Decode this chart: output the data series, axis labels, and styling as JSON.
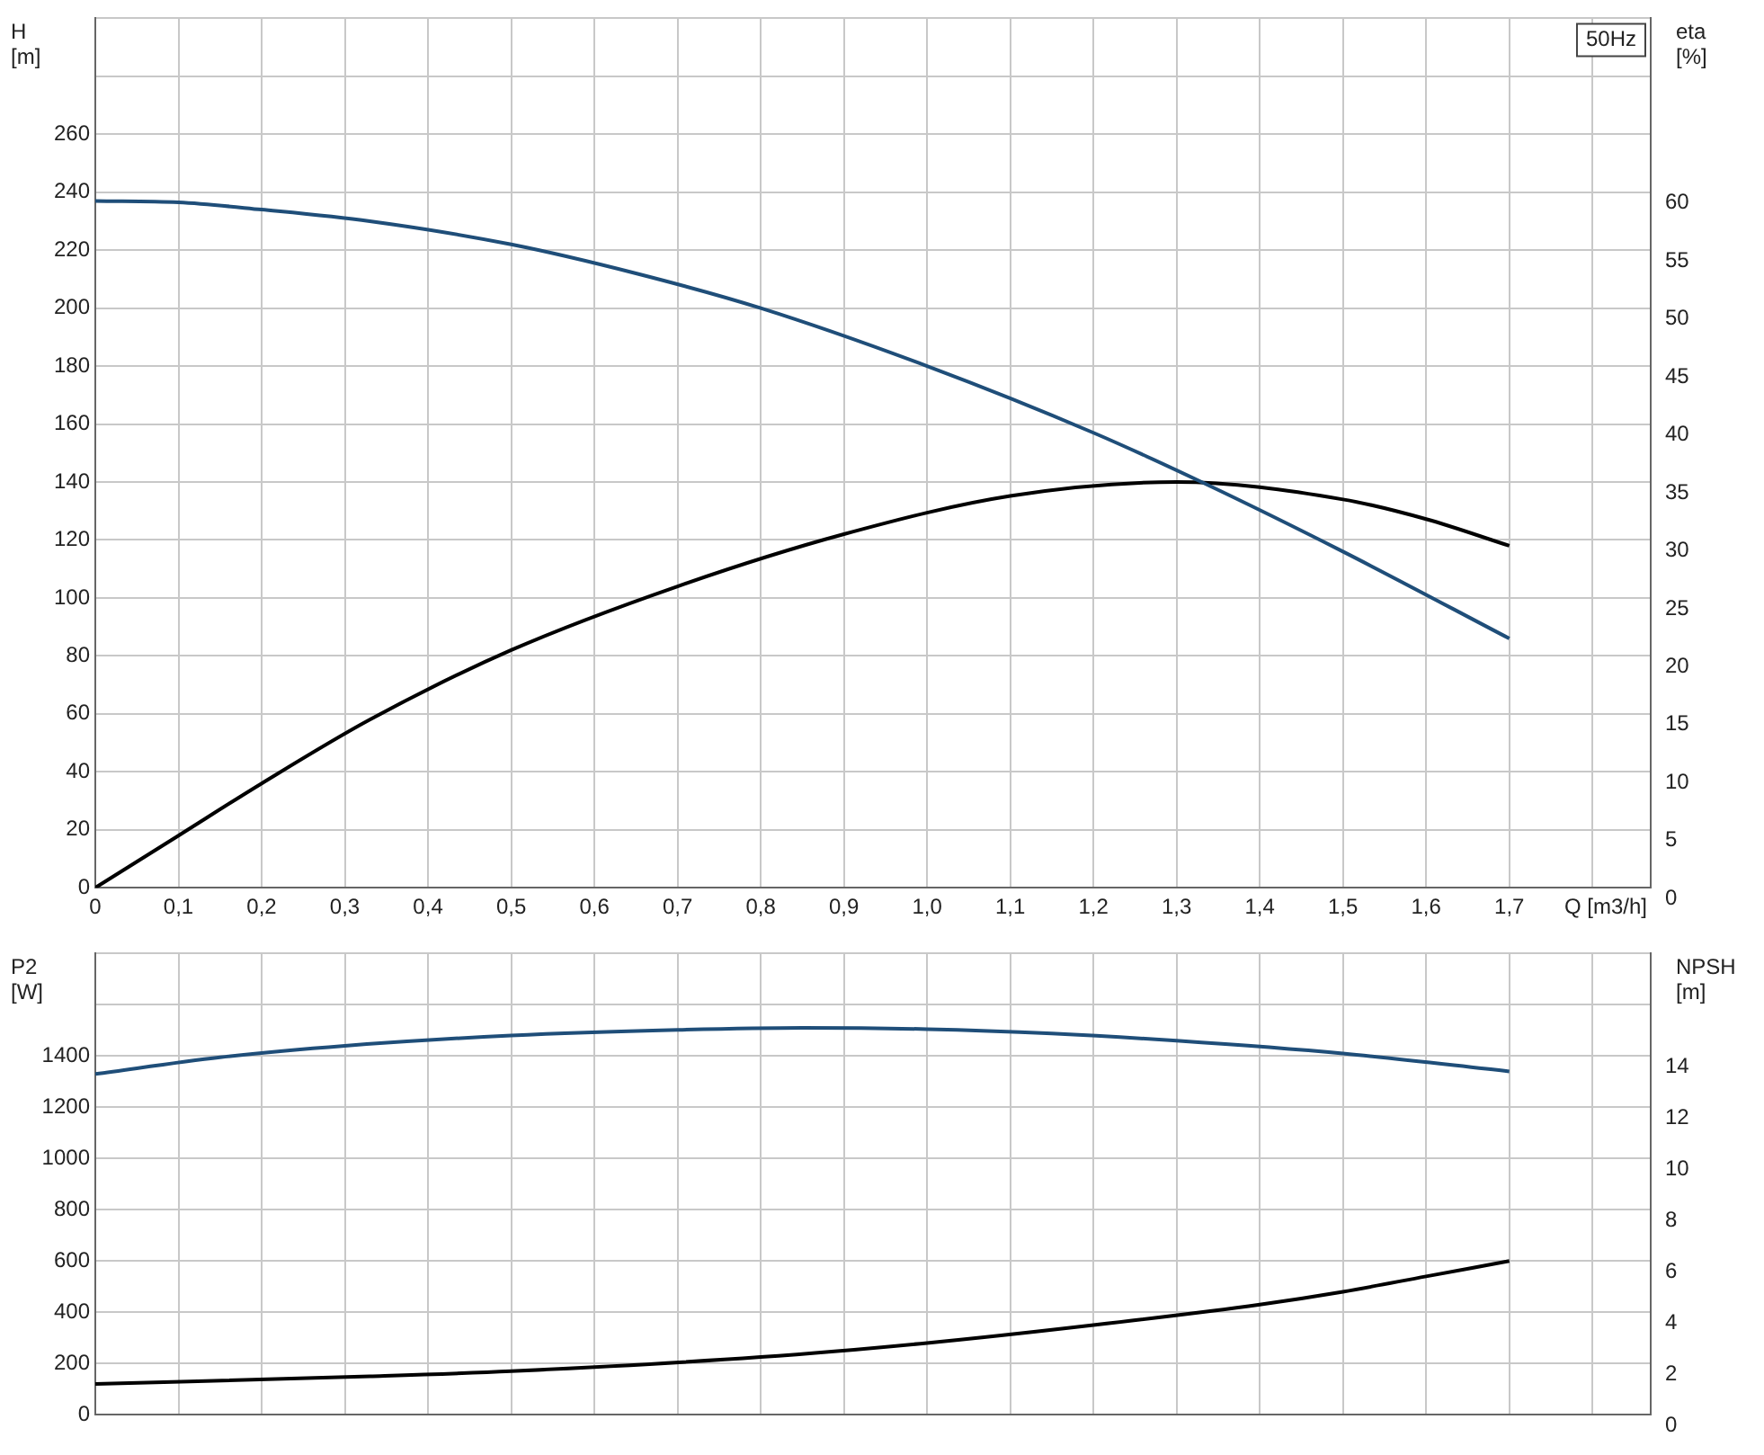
{
  "chart_data": [
    {
      "type": "line",
      "xlabel": "Q [m3/h]",
      "ylabel": "H [m]",
      "y2label": "eta [%]",
      "annotations": [
        "50Hz"
      ],
      "grid": true,
      "xlim": [
        0,
        1.87
      ],
      "xticks": [
        0,
        {
          "value": 0.1,
          "label": "0,1"
        },
        {
          "value": 0.2,
          "label": "0,2"
        },
        {
          "value": 0.3,
          "label": "0,3"
        },
        {
          "value": 0.4,
          "label": "0,4"
        },
        {
          "value": 0.5,
          "label": "0,5"
        },
        {
          "value": 0.6,
          "label": "0,6"
        },
        {
          "value": 0.7,
          "label": "0,7"
        },
        {
          "value": 0.8,
          "label": "0,8"
        },
        {
          "value": 0.9,
          "label": "0,9"
        },
        {
          "value": 1.0,
          "label": "1,0"
        },
        {
          "value": 1.1,
          "label": "1,1"
        },
        {
          "value": 1.2,
          "label": "1,2"
        },
        {
          "value": 1.3,
          "label": "1,3"
        },
        {
          "value": 1.4,
          "label": "1,4"
        },
        {
          "value": 1.5,
          "label": "1,5"
        },
        {
          "value": 1.6,
          "label": "1,6"
        },
        {
          "value": 1.7,
          "label": "1,7"
        },
        {
          "value": 1.8,
          "label": null
        }
      ],
      "ylim": [
        0,
        300
      ],
      "yticks": [
        0,
        20,
        40,
        60,
        80,
        100,
        120,
        140,
        160,
        180,
        200,
        220,
        240,
        260,
        {
          "value": 280,
          "label": null
        },
        {
          "value": 300,
          "label": null
        }
      ],
      "y2lim": [
        0,
        75
      ],
      "y2ticks": [
        0,
        5,
        10,
        15,
        20,
        25,
        30,
        35,
        40,
        45,
        50,
        55,
        60
      ],
      "series": [
        {
          "color": "#1f4e79",
          "x": [
            0,
            0.1,
            0.2,
            0.33,
            0.5,
            0.65,
            0.8,
            1.0,
            1.2,
            1.33,
            1.5,
            1.7
          ],
          "values": [
            237,
            236.5,
            234,
            230,
            222,
            212,
            200,
            180,
            157,
            140,
            116,
            86
          ]
        },
        {
          "color": "#000000",
          "axis": "y2",
          "x": [
            0,
            0.1,
            0.2,
            0.33,
            0.5,
            0.7,
            0.9,
            1.1,
            1.3,
            1.5,
            1.6,
            1.7
          ],
          "values": [
            0,
            4.5,
            9,
            14.5,
            20.5,
            26,
            30.5,
            33.8,
            35,
            33.5,
            31.8,
            29.5
          ]
        }
      ]
    },
    {
      "type": "line",
      "ylabel": "P2 [W]",
      "y2label": "NPSH [m]",
      "grid": true,
      "tick_labels": "y",
      "xlim": [
        0,
        1.87
      ],
      "xticks": [
        0,
        0.1,
        0.2,
        0.3,
        0.4,
        0.5,
        0.6,
        0.7,
        0.8,
        0.9,
        1.0,
        1.1,
        1.2,
        1.3,
        1.4,
        1.5,
        1.6,
        1.7,
        1.8
      ],
      "ylim": [
        0,
        1800
      ],
      "yticks": [
        0,
        200,
        400,
        600,
        800,
        1000,
        1200,
        1400,
        {
          "value": 1600,
          "label": null
        },
        {
          "value": 1800,
          "label": null
        }
      ],
      "y2lim": [
        0,
        18
      ],
      "y2ticks": [
        0,
        2,
        4,
        6,
        8,
        10,
        12,
        14
      ],
      "series": [
        {
          "color": "#1f4e79",
          "x": [
            0,
            0.15,
            0.3,
            0.5,
            0.7,
            0.85,
            1.0,
            1.15,
            1.3,
            1.5,
            1.7
          ],
          "values": [
            1330,
            1395,
            1440,
            1480,
            1502,
            1510,
            1505,
            1488,
            1460,
            1410,
            1340
          ]
        },
        {
          "color": "#000000",
          "axis": "y2",
          "x": [
            0,
            0.33,
            0.5,
            0.8,
            1.0,
            1.2,
            1.4,
            1.5,
            1.6,
            1.7
          ],
          "values": [
            1.2,
            1.5,
            1.7,
            2.25,
            2.8,
            3.5,
            4.3,
            4.8,
            5.4,
            6.0
          ]
        }
      ]
    }
  ]
}
